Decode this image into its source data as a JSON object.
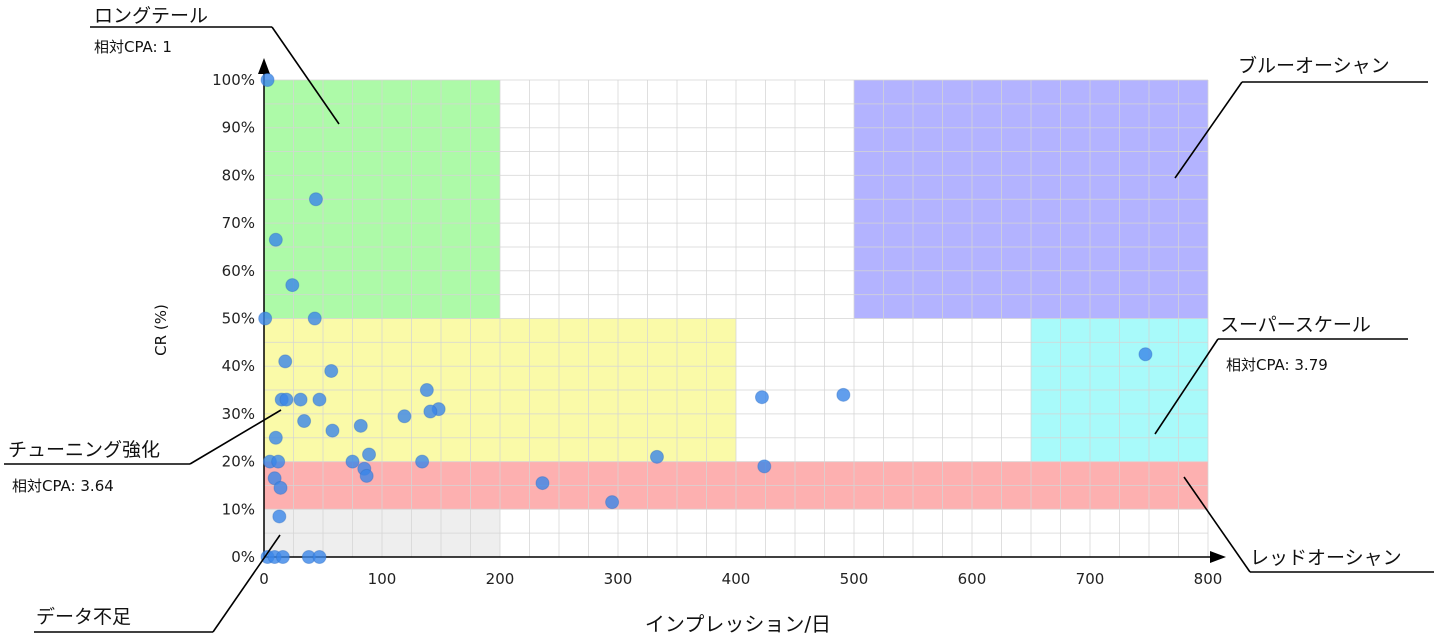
{
  "chart_data": {
    "type": "scatter",
    "xlabel": "インプレッション/日",
    "ylabel": "CR (%)",
    "xlim": [
      0,
      800
    ],
    "ylim": [
      0,
      100
    ],
    "x_ticks": [
      "0",
      "100",
      "200",
      "300",
      "400",
      "500",
      "600",
      "700",
      "800"
    ],
    "y_ticks": [
      "0%",
      "10%",
      "20%",
      "30%",
      "40%",
      "50%",
      "60%",
      "70%",
      "80%",
      "90%",
      "100%"
    ],
    "grid": true,
    "regions": [
      {
        "name": "ロングテール",
        "x": [
          0,
          200
        ],
        "y": [
          50,
          100
        ],
        "color": "#adfaa8"
      },
      {
        "name": "ブルーオーシャン",
        "x": [
          500,
          800
        ],
        "y": [
          50,
          100
        ],
        "color": "#b3b3ff"
      },
      {
        "name": "チューニング強化",
        "x": [
          0,
          400
        ],
        "y": [
          20,
          50
        ],
        "color": "#fafaa8"
      },
      {
        "name": "スーパースケール",
        "x": [
          650,
          800
        ],
        "y": [
          20,
          50
        ],
        "color": "#a8fafa"
      },
      {
        "name": "レッドオーシャン",
        "x": [
          0,
          800
        ],
        "y": [
          10,
          20
        ],
        "color": "#fdb0b0"
      },
      {
        "name": "データ不足",
        "x": [
          0,
          200
        ],
        "y": [
          0,
          10
        ],
        "color": "#eeeeee"
      }
    ],
    "points": [
      {
        "x": 3,
        "y": 100
      },
      {
        "x": 44,
        "y": 75
      },
      {
        "x": 10,
        "y": 66.5
      },
      {
        "x": 24,
        "y": 57
      },
      {
        "x": 1,
        "y": 50
      },
      {
        "x": 43,
        "y": 50
      },
      {
        "x": 18,
        "y": 41
      },
      {
        "x": 57,
        "y": 39
      },
      {
        "x": 138,
        "y": 35
      },
      {
        "x": 15,
        "y": 33
      },
      {
        "x": 19,
        "y": 33
      },
      {
        "x": 31,
        "y": 33
      },
      {
        "x": 47,
        "y": 33
      },
      {
        "x": 148,
        "y": 31
      },
      {
        "x": 141,
        "y": 30.5
      },
      {
        "x": 119,
        "y": 29.5
      },
      {
        "x": 34,
        "y": 28.5
      },
      {
        "x": 82,
        "y": 27.5
      },
      {
        "x": 58,
        "y": 26.5
      },
      {
        "x": 10,
        "y": 25
      },
      {
        "x": 89,
        "y": 21.5
      },
      {
        "x": 333,
        "y": 21
      },
      {
        "x": 5,
        "y": 20
      },
      {
        "x": 12,
        "y": 20
      },
      {
        "x": 75,
        "y": 20
      },
      {
        "x": 134,
        "y": 20
      },
      {
        "x": 85,
        "y": 18.5
      },
      {
        "x": 424,
        "y": 19
      },
      {
        "x": 9,
        "y": 16.5
      },
      {
        "x": 87,
        "y": 17
      },
      {
        "x": 236,
        "y": 15.5
      },
      {
        "x": 14,
        "y": 14.5
      },
      {
        "x": 295,
        "y": 11.5
      },
      {
        "x": 13,
        "y": 8.5
      },
      {
        "x": 747,
        "y": 42.5
      },
      {
        "x": 491,
        "y": 34
      },
      {
        "x": 422,
        "y": 33.5
      },
      {
        "x": 3,
        "y": 0
      },
      {
        "x": 9,
        "y": 0
      },
      {
        "x": 16,
        "y": 0
      },
      {
        "x": 38,
        "y": 0
      },
      {
        "x": 47,
        "y": 0
      }
    ],
    "annotations": [
      {
        "title": "ロングテール",
        "sub": "相対CPA: 1"
      },
      {
        "title": "ブルーオーシャン",
        "sub": ""
      },
      {
        "title": "スーパースケール",
        "sub": "相対CPA: 3.79"
      },
      {
        "title": "チューニング強化",
        "sub": "相対CPA: 3.64"
      },
      {
        "title": "レッドオーシャン",
        "sub": ""
      },
      {
        "title": "データ不足",
        "sub": ""
      }
    ]
  },
  "colors": {
    "point_fill": "#3a86e8",
    "point_stroke": "#2f6fc4",
    "point_opacity": 0.8,
    "grid": "#d4d4d4",
    "axis": "#000000"
  }
}
